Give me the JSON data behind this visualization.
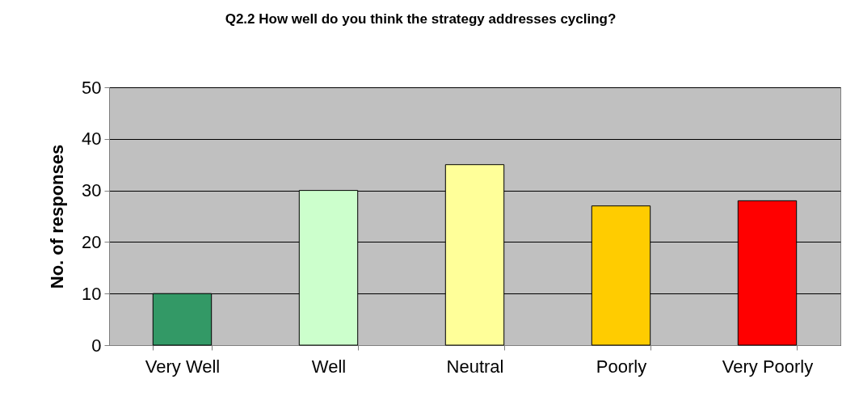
{
  "chart_data": {
    "type": "bar",
    "title": "Q2.2  How well do you think the strategy addresses cycling?",
    "ylabel": "No. of responses",
    "categories": [
      "Very Well",
      "Well",
      "Neutral",
      "Poorly",
      "Very Poorly"
    ],
    "values": [
      10,
      30,
      35,
      27,
      28
    ],
    "colors": [
      "#339966",
      "#ccffcc",
      "#ffff99",
      "#ffcc00",
      "#ff0000"
    ],
    "ylim": [
      0,
      50
    ],
    "yticks": [
      0,
      10,
      20,
      30,
      40,
      50
    ],
    "grid": "y",
    "legend": false
  }
}
